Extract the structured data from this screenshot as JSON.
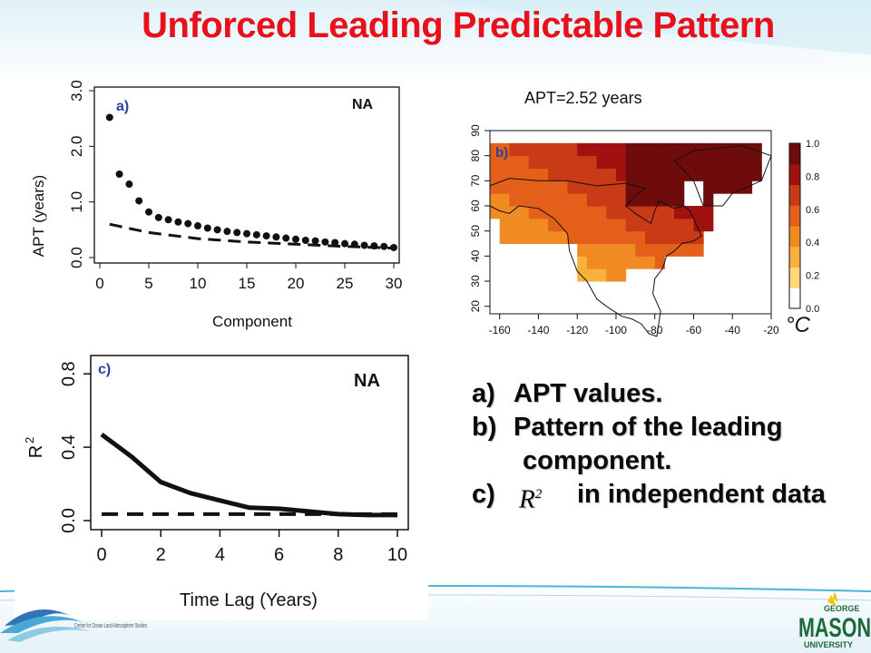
{
  "slide": {
    "title": "Unforced Leading Predictable Pattern",
    "apt_label": "APT=2.52 years",
    "descriptions": [
      {
        "label": "a)",
        "text": "APT values."
      },
      {
        "label": "b)",
        "text": "Pattern of the leading"
      },
      {
        "label": "",
        "text": "component."
      },
      {
        "label": "c)",
        "math": "R",
        "math_sup": "2",
        "text": "in independent data"
      }
    ],
    "colors": {
      "title": "#e8101a",
      "panel_label": "#2b3fa0",
      "accent_line": "#4bb6d6"
    }
  },
  "logos": {
    "left_org": "Center for Ocean-Land-Atmosphere Studies",
    "right_name_top": "GEORGE",
    "right_name_main": "MASON",
    "right_name_bottom": "UNIVERSITY"
  },
  "chart_data": [
    {
      "id": "a",
      "panel_label": "a)",
      "region_label": "NA",
      "type": "scatter",
      "xlabel": "Component",
      "ylabel": "APT (years)",
      "xlim": [
        0,
        30
      ],
      "ylim": [
        0,
        3.0
      ],
      "xticks": [
        0,
        5,
        10,
        15,
        20,
        25,
        30
      ],
      "yticks": [
        0.0,
        1.0,
        2.0,
        3.0
      ],
      "ytick_labels": [
        "0.0",
        "1.0",
        "2.0",
        "3.0"
      ],
      "series": [
        {
          "style": "points",
          "x": [
            1,
            2,
            3,
            4,
            5,
            6,
            7,
            8,
            9,
            10,
            11,
            12,
            13,
            14,
            15,
            16,
            17,
            18,
            19,
            20,
            21,
            22,
            23,
            24,
            25,
            26,
            27,
            28,
            29,
            30
          ],
          "y": [
            2.52,
            1.5,
            1.32,
            1.02,
            0.82,
            0.72,
            0.68,
            0.64,
            0.61,
            0.57,
            0.53,
            0.5,
            0.47,
            0.45,
            0.43,
            0.41,
            0.39,
            0.37,
            0.35,
            0.33,
            0.31,
            0.3,
            0.28,
            0.27,
            0.25,
            0.24,
            0.22,
            0.21,
            0.2,
            0.18
          ]
        },
        {
          "style": "dashed",
          "x": [
            1,
            5,
            10,
            15,
            20,
            25,
            30
          ],
          "y": [
            0.6,
            0.45,
            0.34,
            0.28,
            0.24,
            0.2,
            0.17
          ]
        }
      ],
      "grid": false
    },
    {
      "id": "b",
      "panel_label": "b)",
      "type": "heatmap",
      "title": "APT=2.52 years",
      "xlim": [
        -165,
        -20
      ],
      "ylim": [
        17,
        90
      ],
      "xticks": [
        -160,
        -140,
        -120,
        -100,
        -80,
        -60,
        -40,
        -20
      ],
      "yticks": [
        20,
        30,
        40,
        50,
        60,
        70,
        80,
        90
      ],
      "colorbar": {
        "ticks": [
          "0.0",
          "0.2",
          "0.4",
          "0.6",
          "0.8",
          "1.0"
        ],
        "unit": "°C",
        "colors": [
          "#ffffff",
          "#fdd778",
          "#f9b13d",
          "#f08a22",
          "#e4601a",
          "#c93a17",
          "#9f1210",
          "#6e0b0b"
        ]
      },
      "grid": false
    },
    {
      "id": "c",
      "panel_label": "c)",
      "region_label": "NA",
      "type": "line",
      "xlabel": "Time Lag (Years)",
      "ylabel": "R",
      "ylabel_sup": "2",
      "xlim": [
        0,
        10
      ],
      "ylim": [
        0,
        0.9
      ],
      "xticks": [
        0,
        2,
        4,
        6,
        8,
        10
      ],
      "yticks": [
        0.0,
        0.4,
        0.8
      ],
      "ytick_labels": [
        "0.0",
        "0.4",
        "0.8"
      ],
      "series": [
        {
          "style": "solid",
          "x": [
            0,
            1,
            2,
            3,
            4,
            5,
            6,
            7,
            8,
            9,
            10
          ],
          "y": [
            0.47,
            0.35,
            0.21,
            0.15,
            0.11,
            0.07,
            0.065,
            0.05,
            0.035,
            0.03,
            0.03
          ]
        },
        {
          "style": "dashed",
          "x": [
            0,
            10
          ],
          "y": [
            0.035,
            0.035
          ]
        }
      ],
      "grid": false
    }
  ]
}
